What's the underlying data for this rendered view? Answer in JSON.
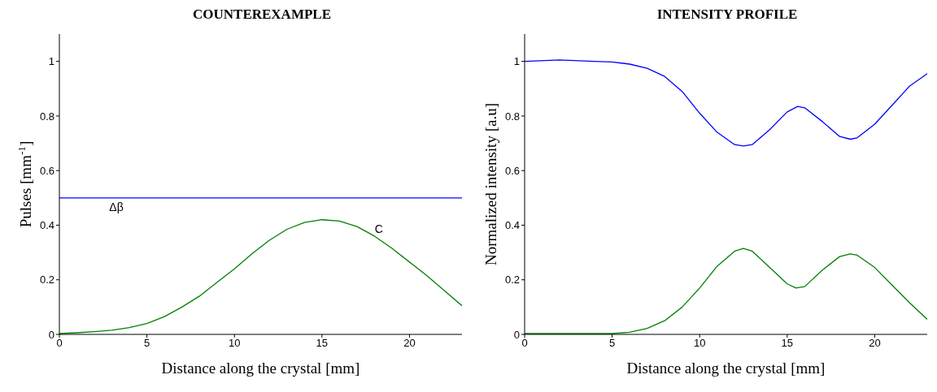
{
  "chart_data": [
    {
      "type": "line",
      "title": "COUNTEREXAMPLE",
      "xlabel": "Distance along the crystal [mm]",
      "ylabel": "Pulses [mm$^{-1}$]",
      "xlim": [
        0,
        23
      ],
      "ylim": [
        0,
        1.1
      ],
      "xticks": [
        0,
        5,
        10,
        15,
        20
      ],
      "yticks": [
        0,
        0.2,
        0.4,
        0.6,
        0.8,
        1
      ],
      "grid": false,
      "legend": false,
      "series": [
        {
          "name": "Δβ",
          "color": "#0000ff",
          "x": [
            0,
            23
          ],
          "values": [
            0.5,
            0.5
          ]
        },
        {
          "name": "C",
          "color": "#008000",
          "x": [
            0,
            1,
            2,
            3,
            4,
            5,
            6,
            7,
            8,
            9,
            10,
            11,
            12,
            13,
            14,
            15,
            16,
            17,
            18,
            19,
            20,
            21,
            22,
            23
          ],
          "values": [
            0.003,
            0.006,
            0.01,
            0.015,
            0.025,
            0.04,
            0.065,
            0.1,
            0.14,
            0.19,
            0.24,
            0.295,
            0.345,
            0.385,
            0.41,
            0.42,
            0.415,
            0.395,
            0.36,
            0.315,
            0.265,
            0.215,
            0.16,
            0.105
          ]
        }
      ]
    },
    {
      "type": "line",
      "title": "INTENSITY PROFILE",
      "xlabel": "Distance along the crystal [mm]",
      "ylabel": "Normalized intensity [a.u]",
      "xlim": [
        0,
        23
      ],
      "ylim": [
        0,
        1.1
      ],
      "xticks": [
        0,
        5,
        10,
        15,
        20
      ],
      "yticks": [
        0,
        0.2,
        0.4,
        0.6,
        0.8,
        1
      ],
      "grid": false,
      "legend": false,
      "series": [
        {
          "color": "#0000ff",
          "x": [
            0,
            2,
            4,
            5,
            6,
            7,
            8,
            9,
            10,
            11,
            12,
            12.5,
            13,
            14,
            15,
            15.6,
            16,
            17,
            18,
            18.6,
            19,
            20,
            21,
            22,
            23
          ],
          "values": [
            1.0,
            1.005,
            1.0,
            0.998,
            0.99,
            0.975,
            0.945,
            0.89,
            0.81,
            0.74,
            0.695,
            0.69,
            0.695,
            0.75,
            0.815,
            0.835,
            0.83,
            0.78,
            0.725,
            0.715,
            0.72,
            0.77,
            0.84,
            0.91,
            0.955
          ]
        },
        {
          "color": "#008000",
          "x": [
            0,
            5,
            6,
            7,
            8,
            9,
            10,
            11,
            12,
            12.5,
            13,
            14,
            15,
            15.5,
            16,
            17,
            18,
            18.6,
            19,
            20,
            21,
            22,
            23
          ],
          "values": [
            0.003,
            0.003,
            0.008,
            0.022,
            0.05,
            0.1,
            0.17,
            0.25,
            0.305,
            0.315,
            0.305,
            0.245,
            0.185,
            0.17,
            0.175,
            0.235,
            0.285,
            0.295,
            0.29,
            0.245,
            0.18,
            0.115,
            0.055
          ]
        }
      ]
    }
  ]
}
